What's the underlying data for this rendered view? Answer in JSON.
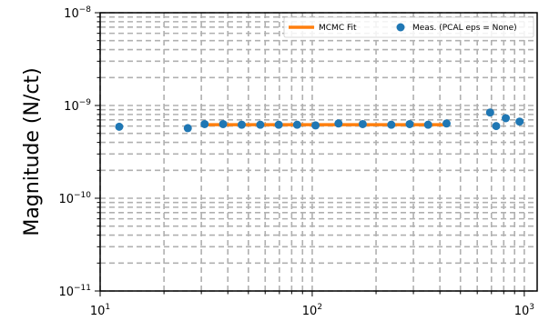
{
  "chart_data": {
    "type": "scatter",
    "title": "",
    "xlabel": "",
    "ylabel": "Magnitude (N/ct)",
    "xscale": "log",
    "yscale": "log",
    "xlim": [
      10,
      1150
    ],
    "ylim": [
      1e-11,
      1e-08
    ],
    "grid": true,
    "legend_position": "top-right",
    "x_ticks": [
      {
        "value": 10,
        "base": "10",
        "exp": "1"
      },
      {
        "value": 100,
        "base": "10",
        "exp": "2"
      },
      {
        "value": 1000,
        "base": "10",
        "exp": "3"
      }
    ],
    "y_ticks": [
      {
        "value": 1e-11,
        "base": "10",
        "exp": "−11"
      },
      {
        "value": 1e-10,
        "base": "10",
        "exp": "−10"
      },
      {
        "value": 1e-09,
        "base": "10",
        "exp": "−9"
      },
      {
        "value": 1e-08,
        "base": "10",
        "exp": "−8"
      }
    ],
    "series": [
      {
        "name": "MCMC Fit",
        "kind": "line",
        "color": "#ff7f0e",
        "x": [
          30,
          430
        ],
        "y": [
          6.2e-10,
          6.2e-10
        ]
      },
      {
        "name": "Meas. (PCAL eps = None)",
        "kind": "scatter",
        "color": "#1f77b4",
        "x": [
          12.3,
          25.9,
          31.1,
          38.0,
          46.5,
          56.9,
          69.5,
          84.9,
          103.7,
          133,
          173,
          236,
          288,
          352,
          430,
          690,
          737,
          818,
          950
        ],
        "y": [
          5.9e-10,
          5.7e-10,
          6.3e-10,
          6.3e-10,
          6.2e-10,
          6.2e-10,
          6.2e-10,
          6.2e-10,
          6.1e-10,
          6.4e-10,
          6.3e-10,
          6.2e-10,
          6.3e-10,
          6.2e-10,
          6.4e-10,
          8.4e-10,
          6e-10,
          7.3e-10,
          6.7e-10
        ]
      }
    ]
  }
}
